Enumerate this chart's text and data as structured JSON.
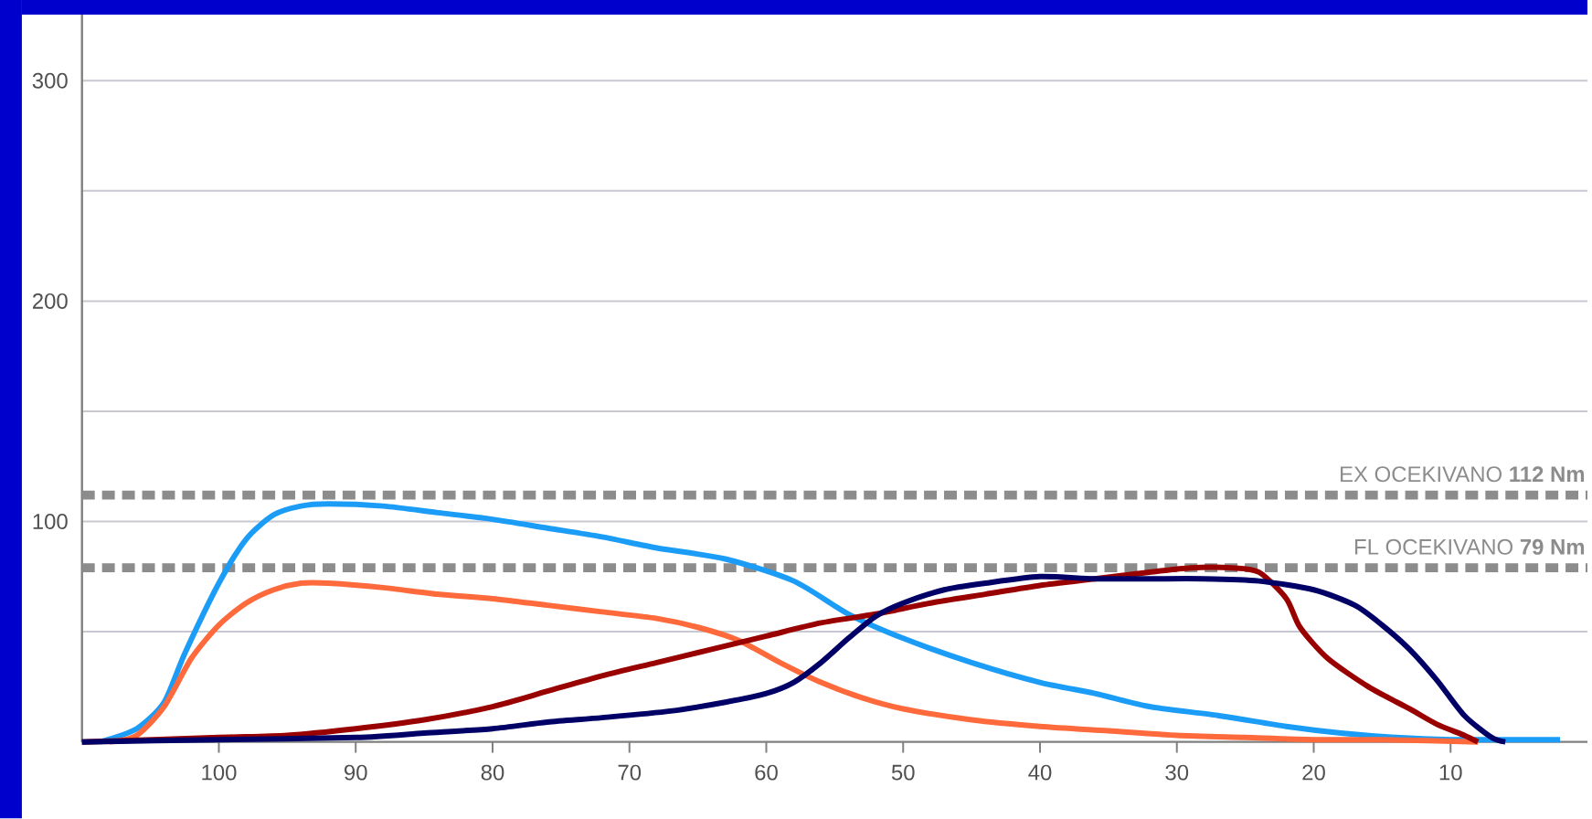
{
  "chart_data": {
    "type": "line",
    "xlim": [
      110,
      0
    ],
    "ylim": [
      0,
      330
    ],
    "xticks": [
      100,
      90,
      80,
      70,
      60,
      50,
      40,
      30,
      20,
      10
    ],
    "yticks": [
      {
        "value": 50,
        "label": null
      },
      100,
      {
        "value": 150,
        "label": null
      },
      200,
      {
        "value": 250,
        "label": null
      },
      300
    ],
    "grid": "y",
    "marker": "none",
    "line_style": "solid",
    "ref_lines": [
      {
        "axis": "y",
        "value": 112,
        "label": "EX OCEKIVANO **112 Nm**",
        "color": "#8c8c8c",
        "line_style": "dashed"
      },
      {
        "axis": "y",
        "value": 79,
        "label": "FL OCEKIVANO   **79 Nm**",
        "color": "#8c8c8c",
        "line_style": "dashed"
      }
    ],
    "series": [
      {
        "color": "#1a9cf7",
        "x": [
          108.7,
          106,
          104,
          102.5,
          100,
          98,
          96,
          94,
          92,
          88,
          84,
          80,
          76,
          72,
          68,
          63,
          58,
          54,
          50,
          45,
          40,
          36,
          32,
          27,
          22,
          18,
          14,
          10,
          6,
          2
        ],
        "values": [
          0,
          6,
          18,
          40,
          72,
          92,
          103,
          107,
          108,
          107,
          104,
          101,
          97,
          93,
          88,
          83,
          73,
          58,
          47,
          36,
          27,
          22,
          16,
          12,
          7,
          4,
          2,
          1,
          1,
          1
        ]
      },
      {
        "color": "#ff6a3d",
        "x": [
          108,
          106,
          104,
          102,
          100,
          98,
          96,
          94,
          92,
          88,
          84,
          80,
          76,
          72,
          68,
          65,
          62,
          59,
          56,
          53,
          50,
          45,
          40,
          35,
          30,
          25,
          20,
          15,
          8
        ],
        "values": [
          0,
          3,
          16,
          38,
          53,
          63,
          69,
          72,
          72,
          70,
          67,
          65,
          62,
          59,
          56,
          52,
          46,
          36,
          27,
          20,
          15,
          10,
          7,
          5,
          3,
          2,
          1,
          1,
          0
        ]
      },
      {
        "color": "#990000",
        "x": [
          110,
          100,
          95,
          90,
          85,
          80,
          76,
          72,
          68,
          64,
          60,
          56,
          52,
          48,
          44,
          40,
          36,
          32,
          29,
          26,
          24,
          22,
          21,
          19,
          16,
          13,
          11,
          9,
          8
        ],
        "values": [
          0,
          2,
          3,
          6,
          10,
          16,
          23,
          30,
          36,
          42,
          48,
          54,
          58,
          63,
          67,
          71,
          74,
          77,
          79,
          79,
          77,
          65,
          52,
          38,
          25,
          15,
          8,
          3,
          0
        ]
      },
      {
        "color": "#000066",
        "x": [
          110,
          100,
          90,
          85,
          80,
          76,
          72,
          67,
          63,
          60,
          58,
          56,
          54,
          52,
          50,
          47,
          44,
          40,
          36,
          32,
          28,
          24,
          20,
          17,
          15,
          13,
          11,
          9,
          7,
          6
        ],
        "values": [
          0,
          1,
          2,
          4,
          6,
          9,
          11,
          14,
          18,
          22,
          27,
          36,
          47,
          57,
          63,
          69,
          72,
          75,
          74,
          74,
          74,
          73,
          69,
          62,
          53,
          42,
          28,
          12,
          2,
          0
        ]
      }
    ]
  }
}
